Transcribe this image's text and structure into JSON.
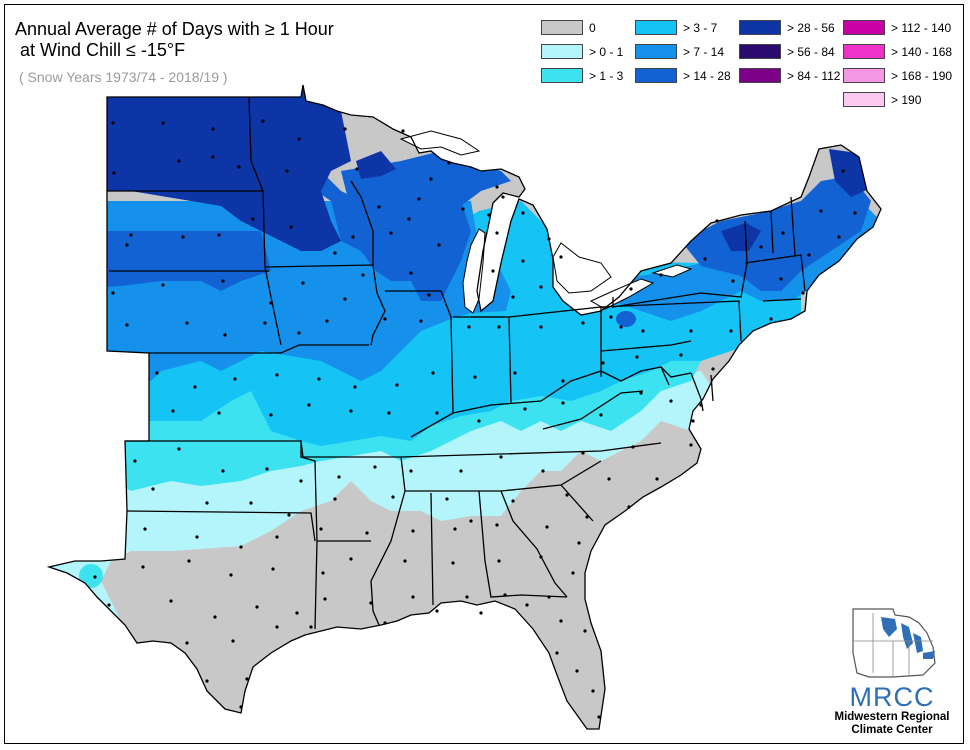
{
  "title": {
    "line1": "Annual Average # of Days with ≥ 1 Hour",
    "line2": " at Wind Chill ≤ -15°F",
    "subtitle": "( Snow Years 1973/74 - 2018/19 )"
  },
  "legend": [
    {
      "label": "0",
      "color": "#c8c8c8"
    },
    {
      "label": "> 0 - 1",
      "color": "#b4f5fb"
    },
    {
      "label": "> 1 - 3",
      "color": "#3ce2f0"
    },
    {
      "label": "> 3 - 7",
      "color": "#15c3f5"
    },
    {
      "label": "> 7 - 14",
      "color": "#1591ec"
    },
    {
      "label": "> 14 - 28",
      "color": "#1262d4"
    },
    {
      "label": "> 28 - 56",
      "color": "#0e35a6"
    },
    {
      "label": "> 56 - 84",
      "color": "#2a0a6e"
    },
    {
      "label": "> 84 - 112",
      "color": "#7c0088"
    },
    {
      "label": "> 112 - 140",
      "color": "#c800a6"
    },
    {
      "label": "> 140 - 168",
      "color": "#f032c8"
    },
    {
      "label": "> 168 - 190",
      "color": "#f598e4"
    },
    {
      "label": "> 190",
      "color": "#fccaf0"
    }
  ],
  "logo": {
    "name": "MRCC",
    "line1": "Midwestern Regional",
    "line2": "Climate Center"
  },
  "colors": {
    "border": "#000000",
    "station": "#000000"
  }
}
